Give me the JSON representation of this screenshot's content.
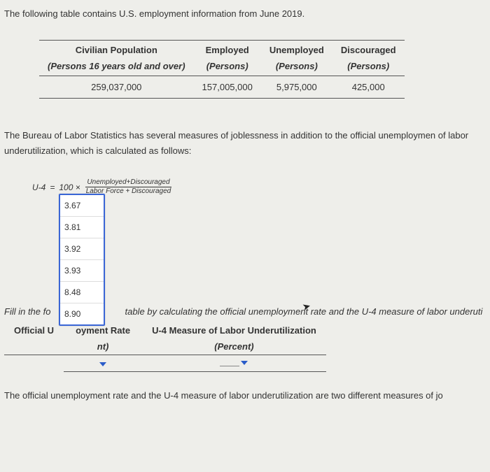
{
  "intro_text": "The following table contains U.S. employment information from June 2019.",
  "table": {
    "headers": {
      "col1_line1": "Civilian Population",
      "col2_line1": "Employed",
      "col3_line1": "Unemployed",
      "col4_line1": "Discouraged",
      "col1_line2": "(Persons 16 years old and over)",
      "col2_line2": "(Persons)",
      "col3_line2": "(Persons)",
      "col4_line2": "(Persons)"
    },
    "row": {
      "civilian_population": "259,037,000",
      "employed": "157,005,000",
      "unemployed": "5,975,000",
      "discouraged": "425,000"
    }
  },
  "para2": "The Bureau of Labor Statistics has several measures of joblessness in addition to the official unemploymen of labor underutilization, which is calculated as follows:",
  "formula": {
    "lhs": "U-4",
    "equals": "=",
    "multiplier": "100 ×",
    "numerator": "Unemployed+Discouraged",
    "denominator": "Labor Force + Discouraged"
  },
  "dropdown_options": [
    "3.67",
    "3.81",
    "3.92",
    "3.93",
    "8.48",
    "8.90"
  ],
  "dropdown_border_color": "#3a66d6",
  "fill_text_prefix": "Fill in the fo",
  "fill_text_suffix": "table by calculating the official unemployment rate and the U-4 measure of labor underuti",
  "answer_table": {
    "col1_label_prefix": "Official U",
    "col1_label_suffix_line1": "oyment Rate",
    "col1_label_line2": "nt)",
    "col2_label_line1": "U-4 Measure of Labor Underutilization",
    "col2_label_line2": "(Percent)"
  },
  "final_para": "The official unemployment rate and the U-4 measure of labor underutilization are two different measures of jo",
  "colors": {
    "background": "#eeeeea",
    "text": "#333333",
    "rule": "#555555",
    "caret": "#2a5cc9"
  }
}
